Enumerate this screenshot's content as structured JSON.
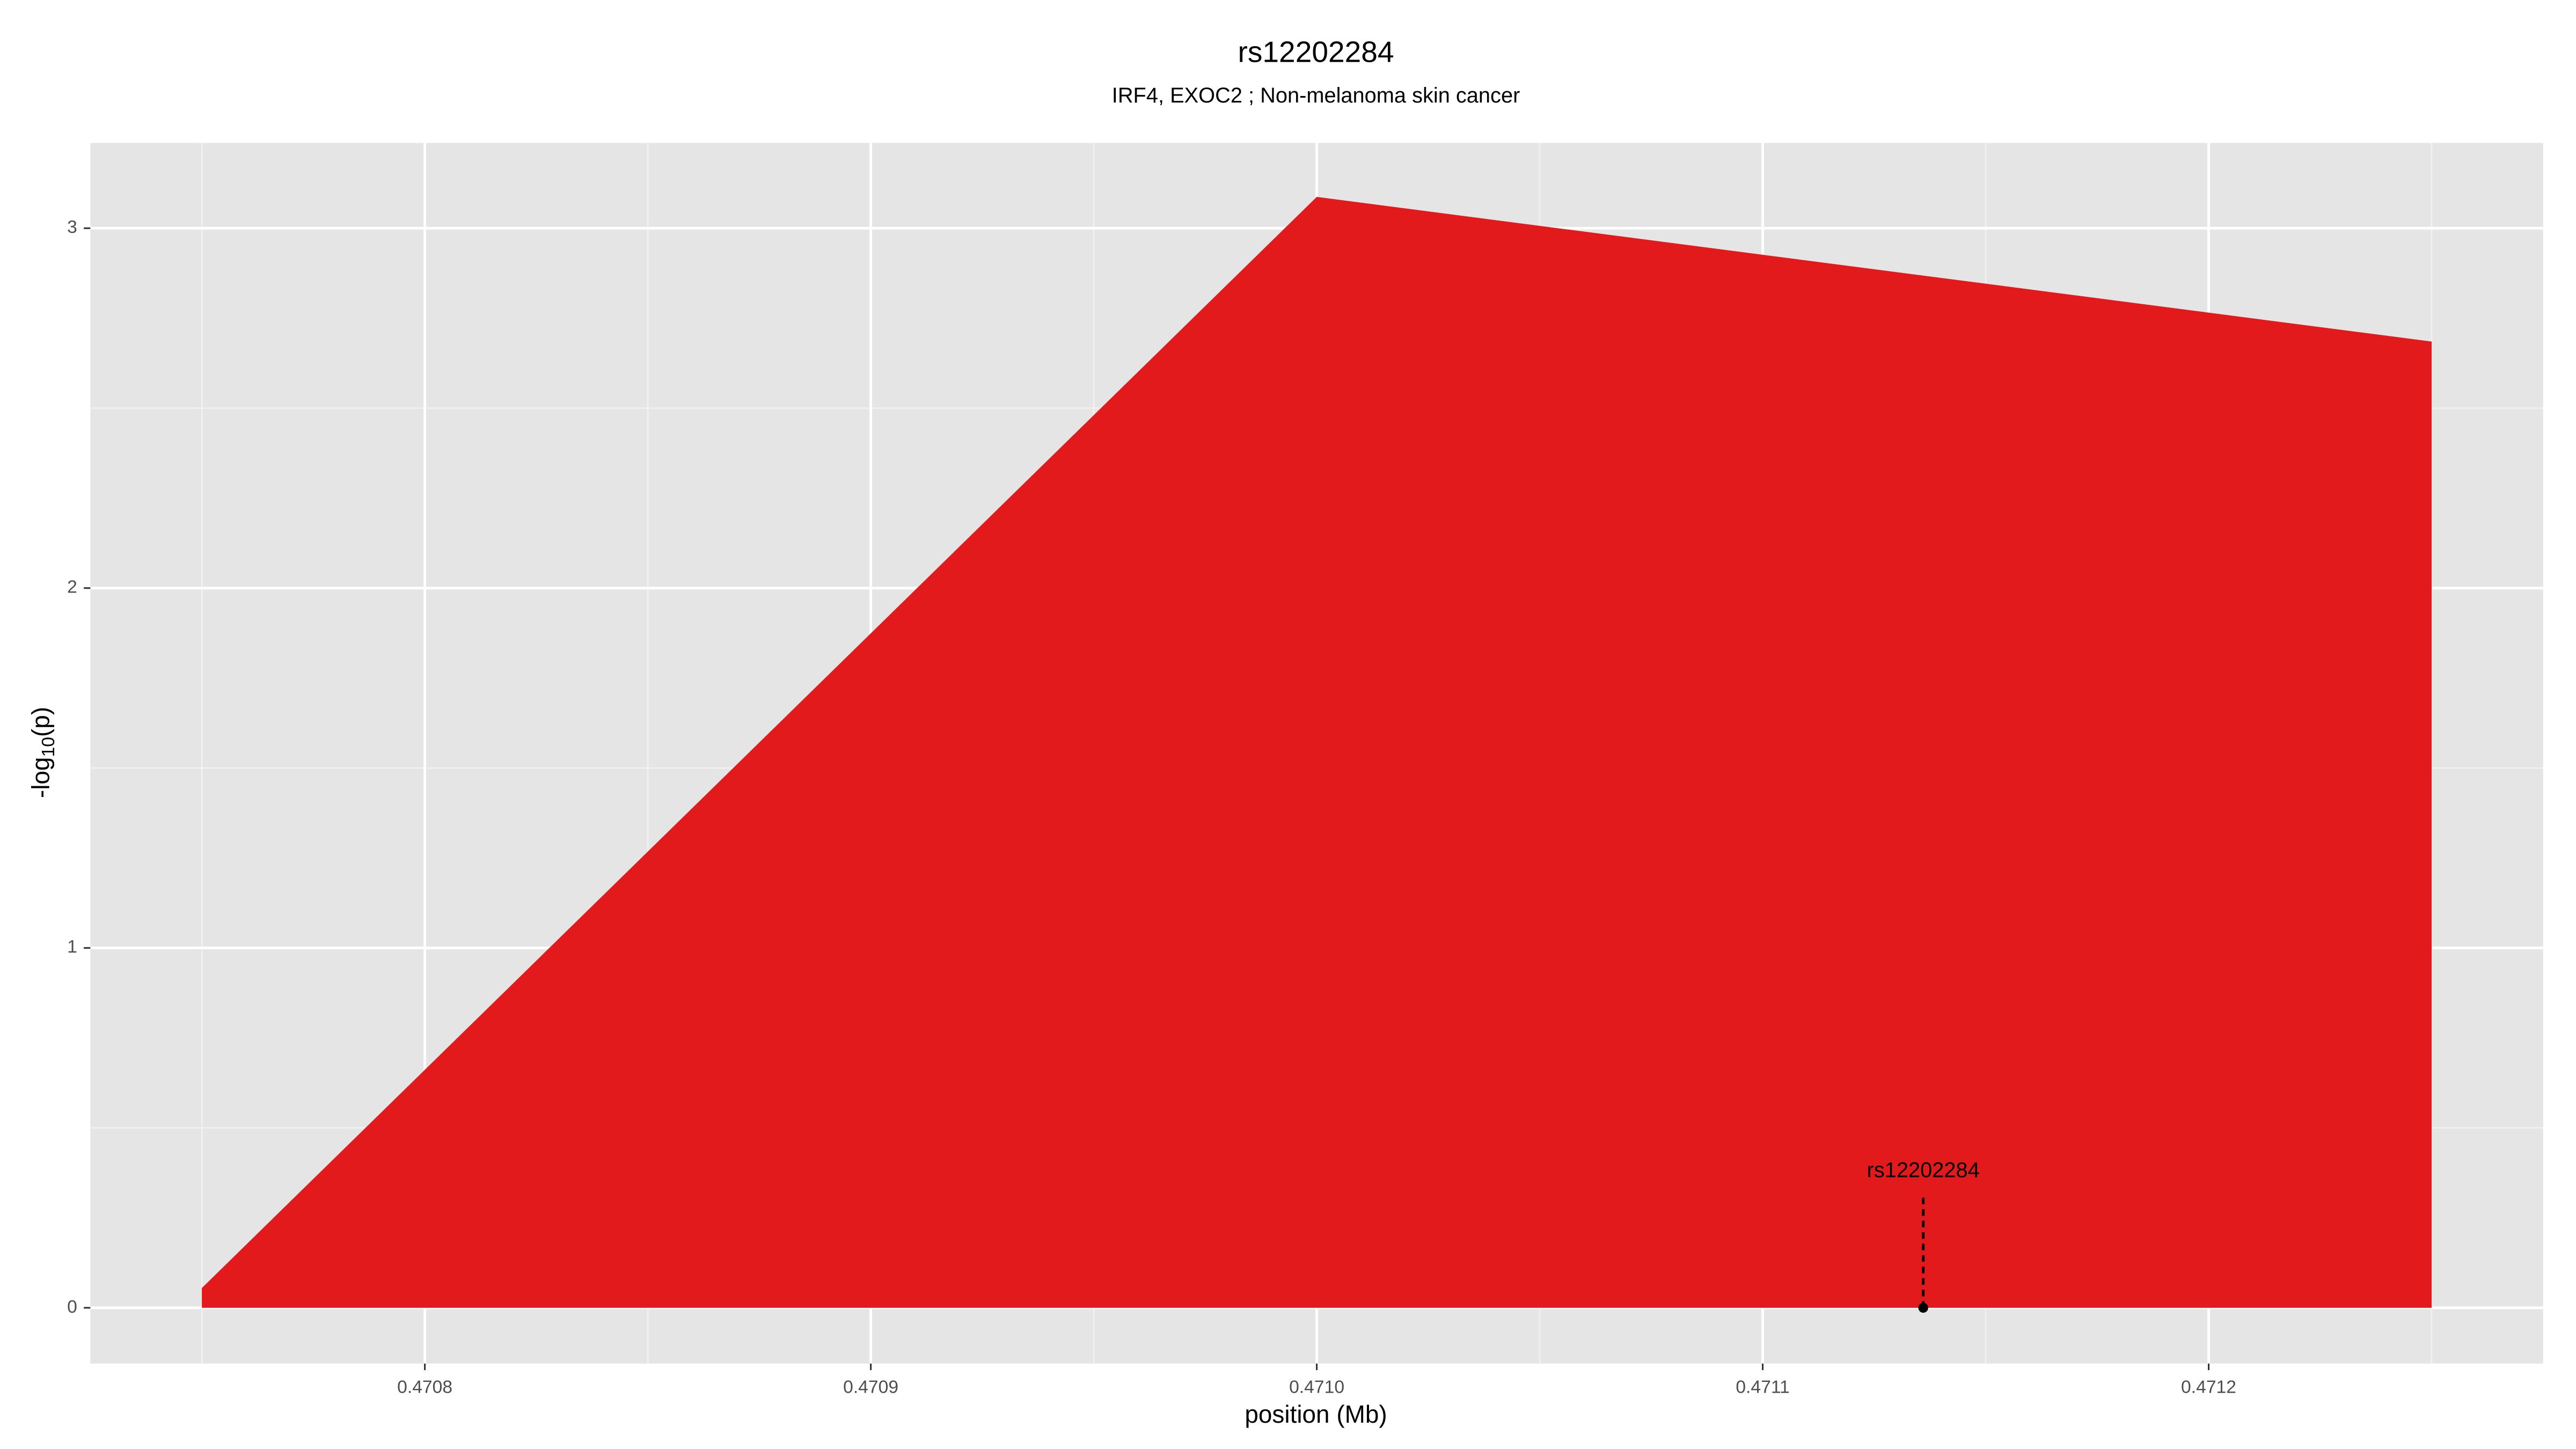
{
  "chart_data": {
    "type": "area",
    "title": "rs12202284",
    "subtitle": "IRF4, EXOC2 ; Non-melanoma skin cancer",
    "xlabel": "position (Mb)",
    "ylabel": {
      "base": "-log",
      "subscript": "10",
      "suffix": "(p)"
    },
    "x": [
      0.47075,
      0.471,
      0.47125
    ],
    "series": [
      {
        "color": "#e31a1c",
        "values": [
          0.055,
          3.087,
          2.685
        ]
      }
    ],
    "xlim": [
      0.470725,
      0.471275
    ],
    "ylim": [
      -0.155,
      3.237
    ],
    "xticks": [
      0.4708,
      0.4709,
      {
        "value": 0.471,
        "label": "0.4710"
      },
      0.4711,
      0.4712
    ],
    "yticks": [
      0,
      1,
      2,
      3
    ],
    "xminorticks": [
      0.47075,
      0.47085,
      0.47095,
      0.47105,
      0.47115,
      0.47125
    ],
    "yminorticks": [
      0.5,
      1.5,
      2.5
    ],
    "grid": true,
    "annotations": [
      {
        "text": "rs12202284",
        "x": 0.471136,
        "y": 0
      }
    ]
  }
}
